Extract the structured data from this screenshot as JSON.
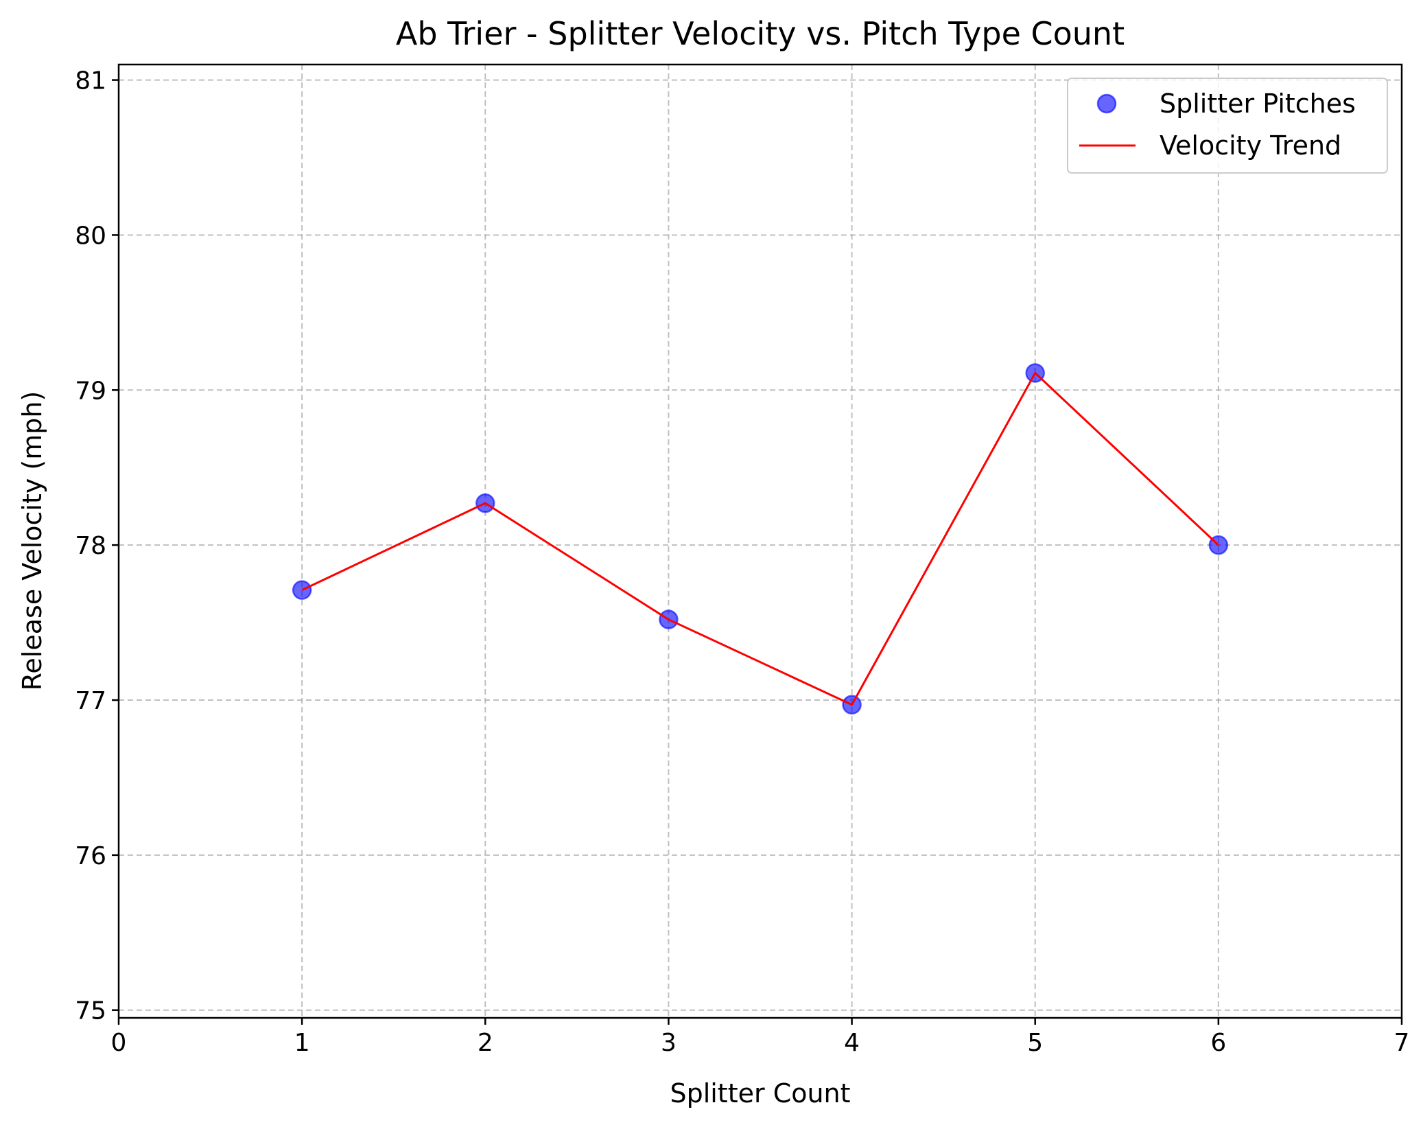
{
  "chart_data": {
    "type": "scatter",
    "title": "Ab Trier - Splitter Velocity vs. Pitch Type Count",
    "xlabel": "Splitter Count",
    "ylabel": "Release Velocity (mph)",
    "xlim": [
      0,
      7
    ],
    "ylim": [
      74.95,
      81.1
    ],
    "xticks": [
      "0",
      "1",
      "2",
      "3",
      "4",
      "5",
      "6",
      "7"
    ],
    "yticks": [
      "75",
      "76",
      "77",
      "78",
      "79",
      "80",
      "81"
    ],
    "grid": true,
    "legend_position": "top-right",
    "series": [
      {
        "name": "Splitter Pitches",
        "kind": "scatter",
        "color": "#0000ff",
        "alpha": 0.6,
        "x": [
          1,
          2,
          3,
          4,
          5,
          6
        ],
        "y": [
          77.71,
          78.27,
          77.52,
          76.97,
          79.11,
          78.0
        ]
      },
      {
        "name": "Velocity Trend",
        "kind": "line",
        "color": "#ff0000",
        "x": [
          1,
          2,
          3,
          4,
          5,
          6
        ],
        "y": [
          77.71,
          78.27,
          77.52,
          76.97,
          79.11,
          78.0
        ]
      }
    ]
  }
}
